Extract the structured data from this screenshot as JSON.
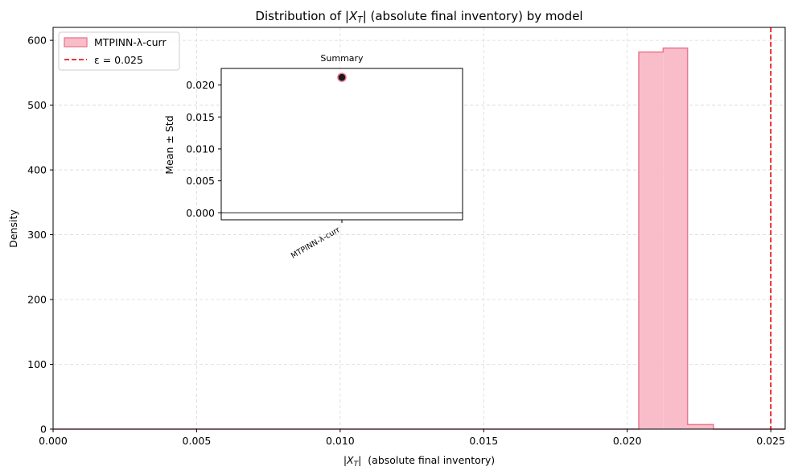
{
  "chart_data": [
    {
      "type": "bar",
      "title": "Distribution of |X_T| (absolute final inventory) by model",
      "title_parts": [
        "Distribution of ",
        "|X",
        "T",
        "|",
        " (absolute final inventory) by model"
      ],
      "xlabel_parts": [
        "|X",
        "T",
        "|",
        "  (absolute final inventory)"
      ],
      "ylabel": "Density",
      "xlim": [
        0,
        0.0255
      ],
      "ylim": [
        0,
        620
      ],
      "xticks": [
        0.0,
        0.005,
        0.01,
        0.015,
        0.02,
        0.025
      ],
      "xtick_labels": [
        "0.000",
        "0.005",
        "0.010",
        "0.015",
        "0.020",
        "0.025"
      ],
      "yticks": [
        0,
        100,
        200,
        300,
        400,
        500,
        600
      ],
      "ytick_labels": [
        "0",
        "100",
        "200",
        "300",
        "400",
        "500",
        "600"
      ],
      "grid": true,
      "legend_position": "top-left",
      "series": [
        {
          "name": "MTPINN-λ-curr",
          "kind": "histogram-step-filled",
          "bins": [
            {
              "x0": 0.0,
              "x1": 0.0204,
              "value": 0
            },
            {
              "x0": 0.0204,
              "x1": 0.02125,
              "value": 582
            },
            {
              "x0": 0.02125,
              "x1": 0.0221,
              "value": 588
            },
            {
              "x0": 0.0221,
              "x1": 0.023,
              "value": 7
            },
            {
              "x0": 0.023,
              "x1": 0.0255,
              "value": 0
            }
          ],
          "fill_color": "#f9bdc9",
          "edge_color": "#e8788f"
        }
      ],
      "reference_lines": [
        {
          "name": "ε = 0.025",
          "x": 0.025,
          "color": "#e41a1c",
          "style": "dashed"
        }
      ]
    },
    {
      "type": "scatter",
      "title": "Summary",
      "ylabel": "Mean ± Std",
      "categories": [
        "MTPINN-λ-curr"
      ],
      "ylim": [
        -0.0011,
        0.0226
      ],
      "yticks": [
        0.0,
        0.005,
        0.01,
        0.015,
        0.02
      ],
      "ytick_labels": [
        "0.000",
        "0.005",
        "0.010",
        "0.015",
        "0.020"
      ],
      "points": [
        {
          "category": "MTPINN-λ-curr",
          "mean": 0.0212,
          "std": 0.0003
        }
      ],
      "marker_color": "#1a1a1a",
      "marker_edge": "#e8788f",
      "zero_line": true
    }
  ],
  "colors": {
    "hist_fill": "#f9bdc9",
    "hist_edge": "#e8788f",
    "epsilon_line": "#e41a1c",
    "grid": "#d9d9d9",
    "axis": "#000000"
  }
}
